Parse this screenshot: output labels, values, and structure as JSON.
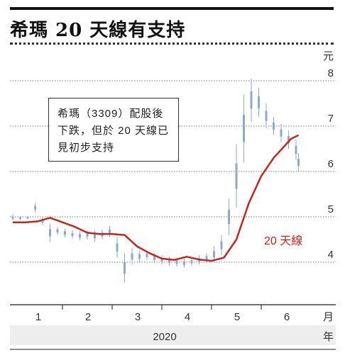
{
  "title": "希瑪 20 天線有支持",
  "annotation": "希瑪（3309）配股後下跌，但於 20 天線已見初步支持",
  "chart_data": {
    "type": "line",
    "title": "希瑪 20 天線有支持",
    "y_unit": "元",
    "x_unit": "月",
    "year_unit": "年",
    "year": "2020",
    "ylim": [
      3.6,
      8.9
    ],
    "yticks": [
      4,
      5,
      6,
      7,
      8
    ],
    "grid": true,
    "months": [
      "1",
      "2",
      "3",
      "4",
      "5",
      "6"
    ],
    "series": [
      {
        "name": "20 天線",
        "color": "#c0281e",
        "style": "moving-average",
        "x": [
          0,
          5,
          10,
          15,
          20,
          25,
          30,
          35,
          40,
          45,
          50,
          55,
          60,
          65,
          70,
          75,
          80,
          85,
          90,
          95,
          100,
          105,
          110,
          112,
          115
        ],
        "values": [
          4.88,
          4.88,
          4.9,
          4.98,
          4.88,
          4.78,
          4.65,
          4.62,
          4.62,
          4.6,
          4.35,
          4.2,
          4.08,
          4.05,
          4.12,
          4.06,
          4.03,
          4.1,
          4.5,
          5.3,
          5.9,
          6.3,
          6.6,
          6.72,
          6.8
        ]
      },
      {
        "name": "daily-price",
        "color": "#8fa8cf",
        "style": "candlestick",
        "x": [
          0,
          3,
          6,
          9,
          12,
          15,
          18,
          21,
          24,
          27,
          30,
          33,
          36,
          39,
          42,
          45,
          48,
          51,
          54,
          57,
          60,
          63,
          66,
          69,
          72,
          75,
          78,
          81,
          84,
          87,
          90,
          93,
          96,
          99,
          102,
          105,
          108,
          111,
          114,
          115
        ],
        "low": [
          4.92,
          4.93,
          4.95,
          5.1,
          4.82,
          4.45,
          4.6,
          4.55,
          4.52,
          4.48,
          4.5,
          4.45,
          4.5,
          4.55,
          4.1,
          3.55,
          3.95,
          4.0,
          4.05,
          3.98,
          3.95,
          3.92,
          3.9,
          3.88,
          3.92,
          3.95,
          3.98,
          4.0,
          4.15,
          4.6,
          5.2,
          6.2,
          7.1,
          7.2,
          6.95,
          6.8,
          6.65,
          6.5,
          6.25,
          6.0
        ],
        "high": [
          5.05,
          5.02,
          5.02,
          5.3,
          5.0,
          4.85,
          4.78,
          4.74,
          4.7,
          4.68,
          4.7,
          4.7,
          4.72,
          4.8,
          4.55,
          4.2,
          4.3,
          4.25,
          4.25,
          4.2,
          4.15,
          4.12,
          4.1,
          4.08,
          4.1,
          4.15,
          4.2,
          4.35,
          4.6,
          5.4,
          6.6,
          7.7,
          8.05,
          7.85,
          7.5,
          7.2,
          7.05,
          6.9,
          6.7,
          6.4
        ]
      }
    ]
  }
}
